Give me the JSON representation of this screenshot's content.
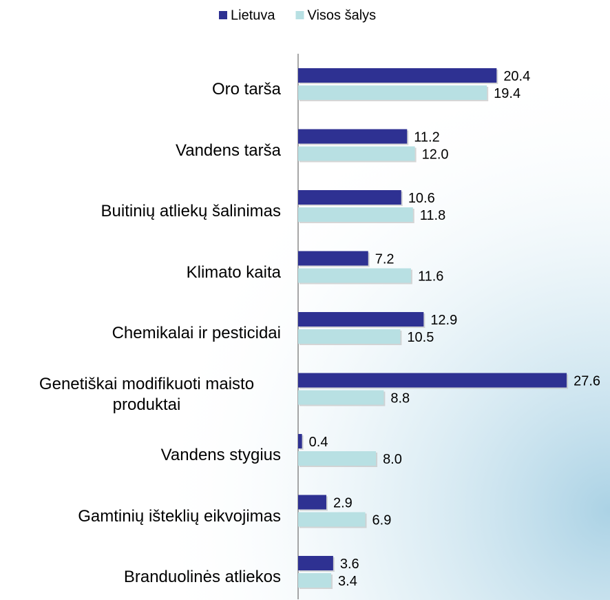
{
  "chart_data": {
    "type": "bar",
    "orientation": "horizontal",
    "categories": [
      "Oro tarša",
      "Vandens tarša",
      "Buitinių atliekų šalinimas",
      "Klimato kaita",
      "Chemikalai ir pesticidai",
      "Genetiškai modifikuoti maisto produktai",
      "Vandens stygius",
      "Gamtinių išteklių eikvojimas",
      "Branduolinės atliekos"
    ],
    "series": [
      {
        "name": "Lietuva",
        "color": "#2e3192",
        "values": [
          20.4,
          11.2,
          10.6,
          7.2,
          12.9,
          27.6,
          0.4,
          2.9,
          3.6
        ],
        "value_labels": [
          "20.4",
          "11.2",
          "10.6",
          "7.2",
          "12.9",
          "27.6",
          "0.4",
          "2.9",
          "3.6"
        ]
      },
      {
        "name": "Visos šalys",
        "color": "#b8e0e3",
        "values": [
          19.4,
          12.0,
          11.8,
          11.6,
          10.5,
          8.8,
          8.0,
          6.9,
          3.4
        ],
        "value_labels": [
          "19.4",
          "12.0",
          "11.8",
          "11.6",
          "10.5",
          "8.8",
          "8.0",
          "6.9",
          "3.4"
        ]
      }
    ],
    "xlim": [
      0,
      30
    ],
    "legend": "top"
  }
}
